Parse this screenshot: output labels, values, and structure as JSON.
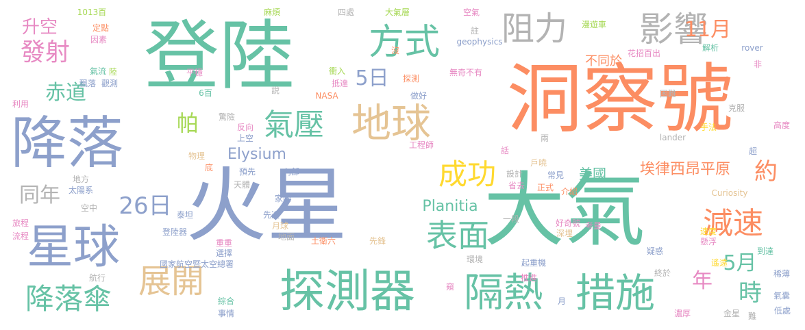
{
  "palette": {
    "teal": "#66c2a5",
    "orange": "#fc8d62",
    "blue": "#8da0cb",
    "pink": "#e78ac3",
    "green": "#a6d854",
    "yellow": "#ffd92f",
    "tan": "#e5c494",
    "gray": "#b3b3b3"
  },
  "words": [
    {
      "text": "火星",
      "color": "blue"
    },
    {
      "text": "洞察號",
      "color": "orange"
    },
    {
      "text": "大氣",
      "color": "teal"
    },
    {
      "text": "登陸",
      "color": "teal"
    },
    {
      "text": "降落",
      "color": "blue"
    },
    {
      "text": "探測器",
      "color": "teal"
    },
    {
      "text": "星球",
      "color": "blue"
    },
    {
      "text": "地球",
      "color": "tan"
    },
    {
      "text": "影響",
      "color": "gray"
    },
    {
      "text": "阻力",
      "color": "gray"
    },
    {
      "text": "方式",
      "color": "teal"
    },
    {
      "text": "隔熱",
      "color": "teal"
    },
    {
      "text": "措施",
      "color": "teal"
    },
    {
      "text": "表面",
      "color": "teal"
    },
    {
      "text": "展開",
      "color": "tan"
    },
    {
      "text": "降落傘",
      "color": "teal"
    },
    {
      "text": "氣壓",
      "color": "teal"
    },
    {
      "text": "成功",
      "color": "yellow"
    },
    {
      "text": "減速",
      "color": "orange"
    },
    {
      "text": "發射",
      "color": "pink"
    },
    {
      "text": "升空",
      "color": "pink"
    },
    {
      "text": "赤道",
      "color": "teal"
    },
    {
      "text": "5日",
      "color": "blue"
    },
    {
      "text": "26日",
      "color": "blue"
    },
    {
      "text": "同年",
      "color": "gray"
    },
    {
      "text": "11月",
      "color": "orange"
    },
    {
      "text": "5月",
      "color": "teal"
    },
    {
      "text": "時",
      "color": "teal"
    },
    {
      "text": "年",
      "color": "pink"
    },
    {
      "text": "約",
      "color": "orange"
    },
    {
      "text": "帕",
      "color": "green"
    },
    {
      "text": "埃律西昂平原",
      "color": "orange"
    },
    {
      "text": "Elysium",
      "color": "blue"
    },
    {
      "text": "Planitia",
      "color": "teal"
    },
    {
      "text": "美國",
      "color": "teal"
    },
    {
      "text": "不同於",
      "color": "orange"
    },
    {
      "text": "1013百",
      "color": "green"
    },
    {
      "text": "定點",
      "color": "orange"
    },
    {
      "text": "因素",
      "color": "pink"
    },
    {
      "text": "麻煩",
      "color": "green"
    },
    {
      "text": "四處",
      "color": "gray"
    },
    {
      "text": "大氣層",
      "color": "green"
    },
    {
      "text": "空氣",
      "color": "pink"
    },
    {
      "text": "漫遊車",
      "color": "green"
    },
    {
      "text": "註",
      "color": "gray"
    },
    {
      "text": "geophysics",
      "color": "blue"
    },
    {
      "text": "花招百出",
      "color": "pink"
    },
    {
      "text": "解析",
      "color": "teal"
    },
    {
      "text": "rover",
      "color": "blue"
    },
    {
      "text": "沒",
      "color": "orange"
    },
    {
      "text": "氣流",
      "color": "teal"
    },
    {
      "text": "陸",
      "color": "green"
    },
    {
      "text": "平穩",
      "color": "pink"
    },
    {
      "text": "衝入",
      "color": "green"
    },
    {
      "text": "探測",
      "color": "orange"
    },
    {
      "text": "無奇不有",
      "color": "pink"
    },
    {
      "text": "非",
      "color": "pink"
    },
    {
      "text": "飄落",
      "color": "blue"
    },
    {
      "text": "觀測",
      "color": "blue"
    },
    {
      "text": "抵達",
      "color": "pink"
    },
    {
      "text": "說",
      "color": "gray"
    },
    {
      "text": "NASA",
      "color": "orange"
    },
    {
      "text": "做好",
      "color": "blue"
    },
    {
      "text": "6百",
      "color": "teal"
    },
    {
      "text": "利用",
      "color": "pink"
    },
    {
      "text": "困難",
      "color": "gray"
    },
    {
      "text": "克服",
      "color": "gray"
    },
    {
      "text": "高度",
      "color": "pink"
    },
    {
      "text": "驚險",
      "color": "gray"
    },
    {
      "text": "反向",
      "color": "pink"
    },
    {
      "text": "上空",
      "color": "blue"
    },
    {
      "text": "手法",
      "color": "yellow"
    },
    {
      "text": "物理",
      "color": "tan"
    },
    {
      "text": "工程師",
      "color": "pink"
    },
    {
      "text": "兩",
      "color": "gray"
    },
    {
      "text": "lander",
      "color": "gray"
    },
    {
      "text": "話",
      "color": "pink"
    },
    {
      "text": "超",
      "color": "blue"
    },
    {
      "text": "戶曉",
      "color": "tan"
    },
    {
      "text": "底",
      "color": "orange"
    },
    {
      "text": "預先",
      "color": "blue"
    },
    {
      "text": "內部",
      "color": "blue"
    },
    {
      "text": "設計",
      "color": "gray"
    },
    {
      "text": "常見",
      "color": "blue"
    },
    {
      "text": "地方",
      "color": "gray"
    },
    {
      "text": "天體",
      "color": "gray"
    },
    {
      "text": "省去",
      "color": "pink"
    },
    {
      "text": "正式",
      "color": "orange"
    },
    {
      "text": "介紹",
      "color": "orange"
    },
    {
      "text": "太陽系",
      "color": "blue"
    },
    {
      "text": "Curiosity",
      "color": "tan"
    },
    {
      "text": "家喻",
      "color": "blue"
    },
    {
      "text": "空中",
      "color": "gray"
    },
    {
      "text": "泰坦",
      "color": "blue"
    },
    {
      "text": "一段",
      "color": "gray"
    },
    {
      "text": "好奇號",
      "color": "pink"
    },
    {
      "text": "旅程",
      "color": "pink"
    },
    {
      "text": "先進",
      "color": "blue"
    },
    {
      "text": "考量",
      "color": "pink"
    },
    {
      "text": "登陸器",
      "color": "blue"
    },
    {
      "text": "深埋",
      "color": "tan"
    },
    {
      "text": "流程",
      "color": "pink"
    },
    {
      "text": "月球",
      "color": "tan"
    },
    {
      "text": "地面",
      "color": "gray"
    },
    {
      "text": "土衛六",
      "color": "orange"
    },
    {
      "text": "重重",
      "color": "pink"
    },
    {
      "text": "選擇",
      "color": "blue"
    },
    {
      "text": "先鋒",
      "color": "tan"
    },
    {
      "text": "懸浮",
      "color": "pink"
    },
    {
      "text": "速度",
      "color": "yellow"
    },
    {
      "text": "到達",
      "color": "teal"
    },
    {
      "text": "國家航空暨太空總署",
      "color": "blue"
    },
    {
      "text": "環境",
      "color": "gray"
    },
    {
      "text": "疑惑",
      "color": "blue"
    },
    {
      "text": "起重機",
      "color": "blue"
    },
    {
      "text": "遙遠",
      "color": "yellow"
    },
    {
      "text": "稀薄",
      "color": "blue"
    },
    {
      "text": "航行",
      "color": "gray"
    },
    {
      "text": "推進",
      "color": "pink"
    },
    {
      "text": "終於",
      "color": "gray"
    },
    {
      "text": "窺",
      "color": "pink"
    },
    {
      "text": "綜合",
      "color": "teal"
    },
    {
      "text": "月",
      "color": "blue"
    },
    {
      "text": "濃厚",
      "color": "pink"
    },
    {
      "text": "氣囊",
      "color": "blue"
    },
    {
      "text": "事情",
      "color": "blue"
    },
    {
      "text": "金星",
      "color": "gray"
    },
    {
      "text": "難",
      "color": "gray"
    },
    {
      "text": "低處",
      "color": "blue"
    }
  ]
}
